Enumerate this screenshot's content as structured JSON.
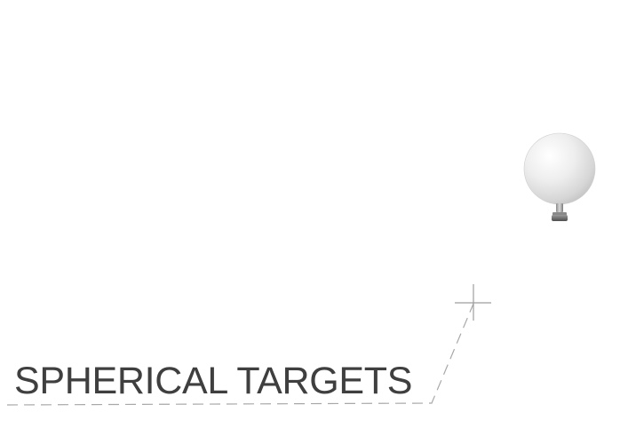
{
  "title": "SPHERICAL TARGETS",
  "icons": {
    "target": "spherical-target-icon",
    "crosshair": "crosshair-icon"
  },
  "colors": {
    "title_text": "#3f3f3f",
    "leader_line": "#a8a8a8",
    "background": "#ffffff"
  }
}
